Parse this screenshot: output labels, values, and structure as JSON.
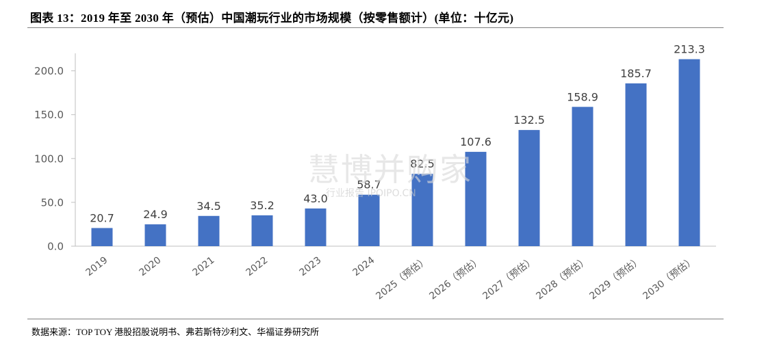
{
  "figure": {
    "title": "图表 13：2019 年至 2030 年（预估）中国潮玩行业的市场规模（按零售额计）(单位：十亿元)",
    "source": "数据来源：TOP TOY 港股招股说明书、弗若斯特沙利文、华福证券研究所"
  },
  "watermark": {
    "main": "慧博并购家",
    "sub": "行业报告 IPOIPO.CN"
  },
  "chart_data": {
    "type": "bar",
    "title": "",
    "xlabel": "",
    "ylabel": "",
    "categories": [
      "2019",
      "2020",
      "2021",
      "2022",
      "2023",
      "2024",
      "2025（预估）",
      "2026（预估）",
      "2027（预估）",
      "2028（预估）",
      "2029（预估）",
      "2030（预估）"
    ],
    "values": [
      20.7,
      24.9,
      34.5,
      35.2,
      43.0,
      58.7,
      82.5,
      107.6,
      132.5,
      158.9,
      185.7,
      213.3
    ],
    "value_labels": [
      "20.7",
      "24.9",
      "34.5",
      "35.2",
      "43.0",
      "58.7",
      "82.5",
      "107.6",
      "132.5",
      "158.9",
      "185.7",
      "213.3"
    ],
    "yticks": [
      0,
      50,
      100,
      150,
      200
    ],
    "ytick_labels": [
      "0.0",
      "50.0",
      "100.0",
      "150.0",
      "200.0"
    ],
    "ylim": [
      0,
      220
    ],
    "grid": false,
    "legend": "none",
    "bar_color": "#4472C4"
  }
}
